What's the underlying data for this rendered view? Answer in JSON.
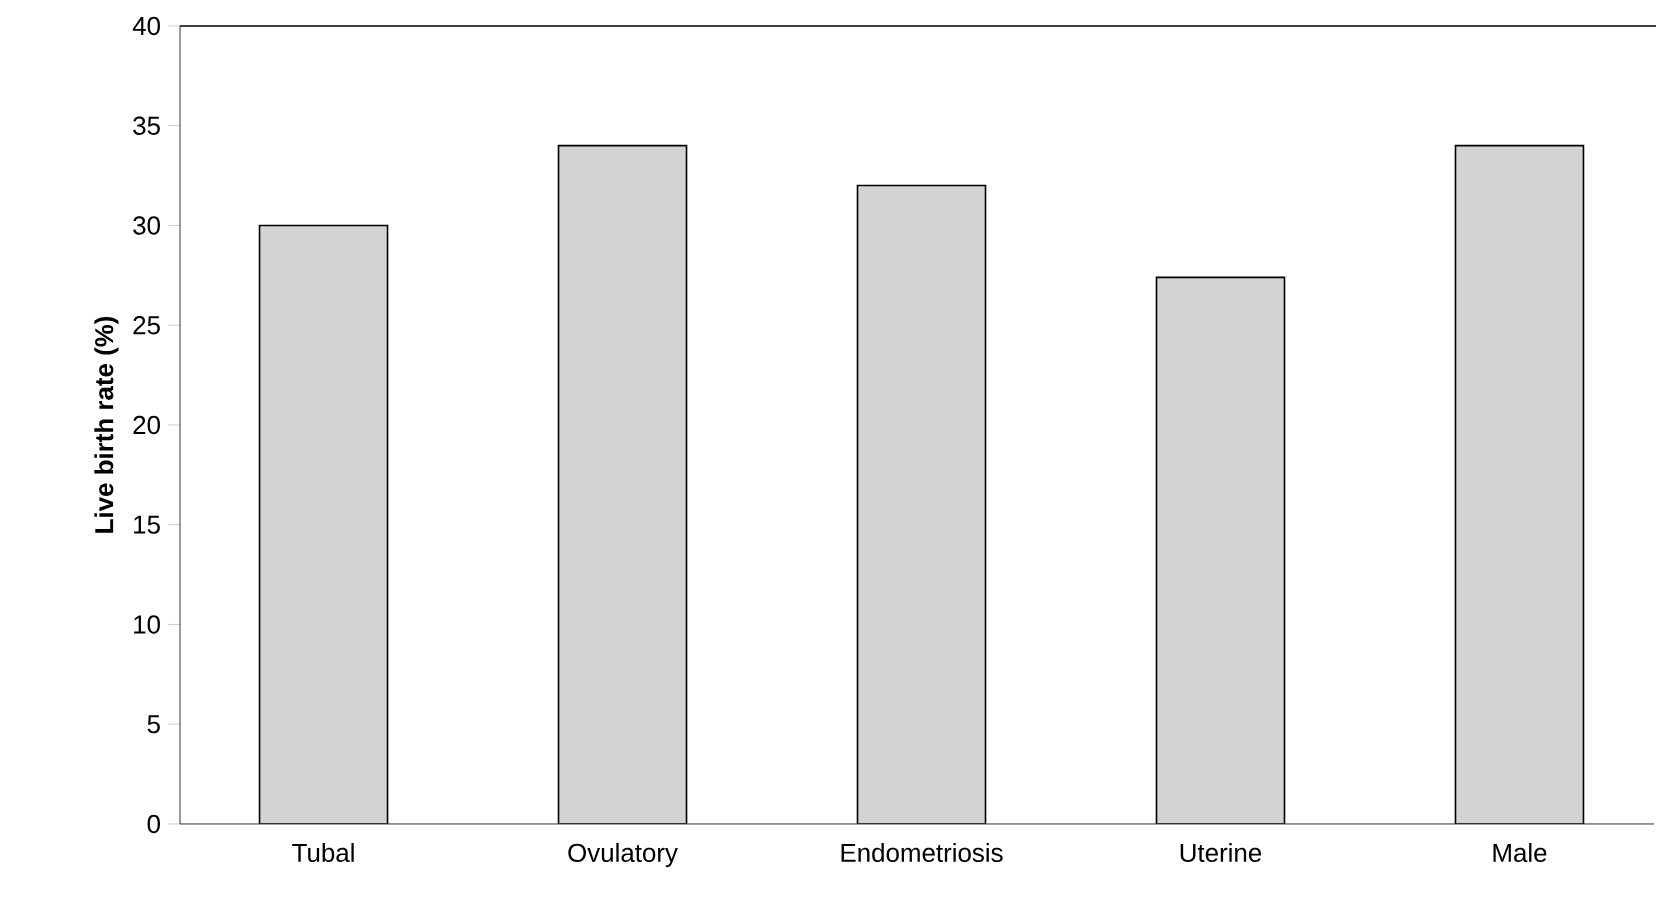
{
  "chart_data": {
    "type": "bar",
    "ylabel": "Live birth rate (%)",
    "categories": [
      "Tubal",
      "Ovulatory",
      "Endometriosis",
      "Uterine",
      "Male"
    ],
    "values": [
      30,
      34,
      32,
      27.4,
      34
    ],
    "color": "#d3d3d3",
    "ylim": [
      0,
      40
    ],
    "yticks": [
      0,
      5,
      10,
      15,
      20,
      25,
      30,
      35,
      40
    ],
    "grid": false
  }
}
